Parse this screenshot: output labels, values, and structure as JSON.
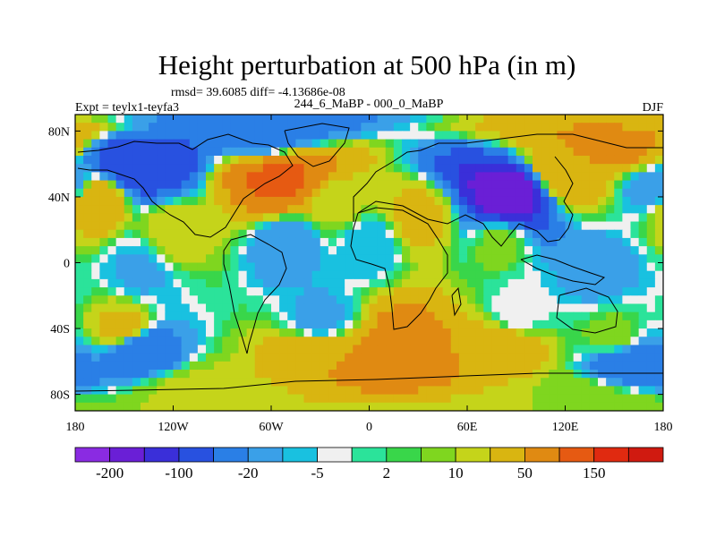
{
  "title": "Height perturbation at 500 hPa (in m)",
  "stats": "rmsd= 39.6085 diff= -4.13686e-08",
  "left_label": "Expt = teylx1-teyfa3",
  "center_label": "244_6_MaBP - 000_0_MaBP",
  "right_label": "DJF",
  "chart_data": {
    "type": "heatmap",
    "title": "Height perturbation at 500 hPa (in m)",
    "x_ticks": [
      "180",
      "120W",
      "60W",
      "0",
      "60E",
      "120E",
      "180"
    ],
    "y_ticks": [
      "80N",
      "40N",
      "0",
      "40S",
      "80S"
    ],
    "xlim": [
      -180,
      180
    ],
    "ylim": [
      -90,
      90
    ],
    "colorbar": {
      "levels": [
        -200,
        -150,
        -100,
        -50,
        -20,
        -10,
        -5,
        -2,
        2,
        5,
        10,
        20,
        50,
        100,
        150,
        200
      ],
      "labels": [
        "-200",
        "-100",
        "-20",
        "-5",
        "2",
        "10",
        "50",
        "150"
      ],
      "colors": [
        "#8a2be2",
        "#6a1fd6",
        "#3a2fd9",
        "#2851e0",
        "#2a7fe6",
        "#3aa0e8",
        "#19c1e0",
        "#f0f0f0",
        "#2be39a",
        "#39d64a",
        "#7fd61f",
        "#c5d41a",
        "#d9b511",
        "#e08a12",
        "#e65a12",
        "#e02a10",
        "#d01a10"
      ]
    },
    "features": [
      {
        "lon": -55,
        "lat": 50,
        "value": 110
      },
      {
        "lon": 85,
        "lat": 42,
        "value": -190
      },
      {
        "lon": -140,
        "lat": 60,
        "value": -90
      },
      {
        "lon": -170,
        "lat": 38,
        "value": 40
      },
      {
        "lon": 150,
        "lat": 70,
        "value": 60
      },
      {
        "lon": 120,
        "lat": 55,
        "value": 45
      },
      {
        "lon": -70,
        "lat": 78,
        "value": -30
      },
      {
        "lon": 175,
        "lat": 45,
        "value": -20
      },
      {
        "lon": -20,
        "lat": 35,
        "value": 12
      },
      {
        "lon": 30,
        "lat": 28,
        "value": 25
      },
      {
        "lon": -50,
        "lat": 12,
        "value": -20
      },
      {
        "lon": 0,
        "lat": 12,
        "value": -10
      },
      {
        "lon": 80,
        "lat": 12,
        "value": 8
      },
      {
        "lon": -140,
        "lat": -5,
        "value": -12
      },
      {
        "lon": -120,
        "lat": 18,
        "value": 15
      },
      {
        "lon": 140,
        "lat": -5,
        "value": -15
      },
      {
        "lon": -30,
        "lat": -35,
        "value": -15
      },
      {
        "lon": 90,
        "lat": -30,
        "value": -5
      },
      {
        "lon": -150,
        "lat": -40,
        "value": 25
      },
      {
        "lon": -30,
        "lat": -55,
        "value": 50
      },
      {
        "lon": 20,
        "lat": -55,
        "value": 85
      },
      {
        "lon": 80,
        "lat": -52,
        "value": 40
      },
      {
        "lon": -140,
        "lat": -52,
        "value": -40
      },
      {
        "lon": 160,
        "lat": -60,
        "value": -35
      },
      {
        "lon": 150,
        "lat": -45,
        "value": 8
      },
      {
        "lon": -100,
        "lat": -75,
        "value": 12
      },
      {
        "lon": 120,
        "lat": -80,
        "value": 10
      }
    ]
  }
}
